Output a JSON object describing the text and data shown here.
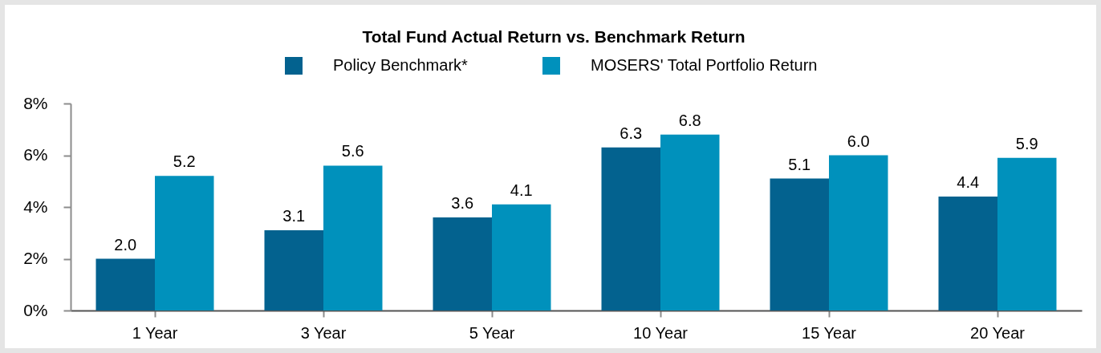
{
  "chart_data": {
    "type": "bar",
    "title": "Total Fund Actual Return vs. Benchmark Return",
    "categories": [
      "1 Year",
      "3 Year",
      "5 Year",
      "10 Year",
      "15 Year",
      "20 Year"
    ],
    "series": [
      {
        "name": "Policy Benchmark*",
        "color": "#03628f",
        "values": [
          2.0,
          3.1,
          3.6,
          6.3,
          5.1,
          4.4
        ],
        "value_labels": [
          "2.0",
          "3.1",
          "3.6",
          "6.3",
          "5.1",
          "4.4"
        ]
      },
      {
        "name": "MOSERS' Total Portfolio Return",
        "color": "#0091bc",
        "values": [
          5.2,
          5.6,
          4.1,
          6.8,
          6.0,
          5.9
        ],
        "value_labels": [
          "5.2",
          "5.6",
          "4.1",
          "6.8",
          "6.0",
          "5.9"
        ]
      }
    ],
    "ylim": [
      0,
      8
    ],
    "yticks": [
      {
        "value": 0,
        "label": "0%"
      },
      {
        "value": 2,
        "label": "2%"
      },
      {
        "value": 4,
        "label": "4%"
      },
      {
        "value": 6,
        "label": "6%"
      },
      {
        "value": 8,
        "label": "8%"
      }
    ],
    "legend": "top"
  }
}
